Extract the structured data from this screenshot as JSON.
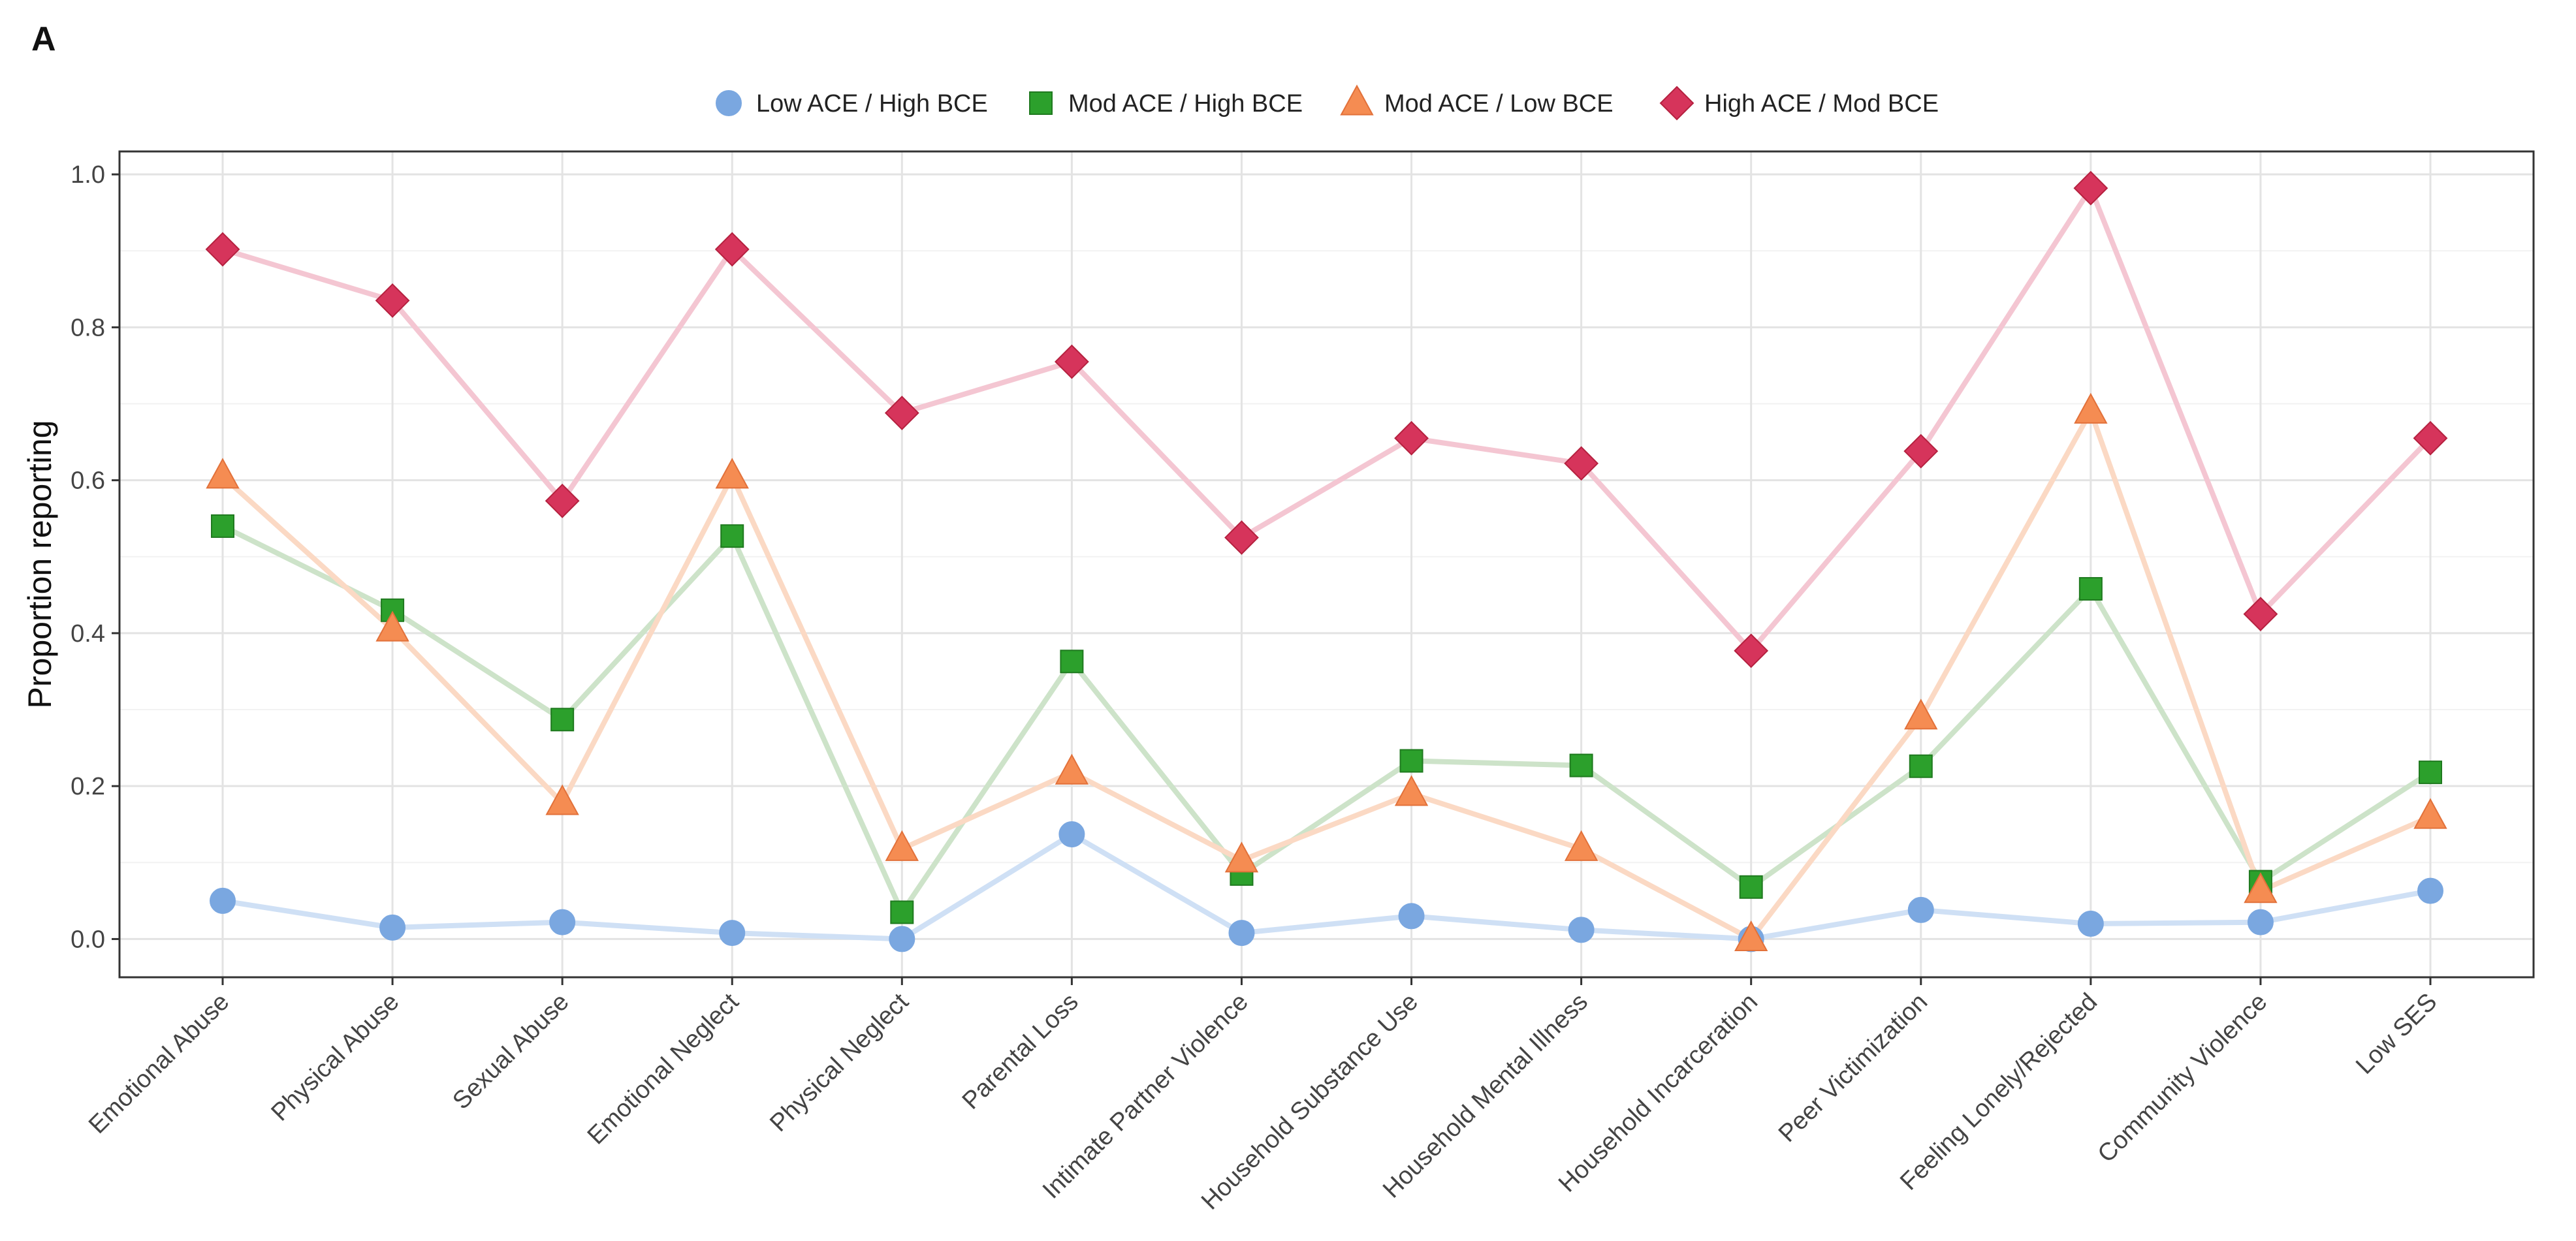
{
  "panel_label": "A",
  "chart_data": {
    "type": "line",
    "title": "",
    "xlabel": "",
    "ylabel": "Proportion reporting",
    "ylim": [
      -0.05,
      1.03
    ],
    "yticks": [
      0.0,
      0.2,
      0.4,
      0.6,
      0.8,
      1.0
    ],
    "ytick_labels": [
      "0.0",
      "0.2",
      "0.4",
      "0.6",
      "0.8",
      "1.0"
    ],
    "grid": true,
    "legend_position": "top",
    "categories": [
      "Emotional Abuse",
      "Physical Abuse",
      "Sexual Abuse",
      "Emotional Neglect",
      "Physical Neglect",
      "Parental Loss",
      "Intimate Partner Violence",
      "Household Substance Use",
      "Household Mental Illness",
      "Household Incarceration",
      "Peer Victimization",
      "Feeling Lonely/Rejected",
      "Community Violence",
      "Low SES"
    ],
    "series": [
      {
        "name": "Low ACE / High BCE",
        "marker": "circle",
        "color": "#7aa7e0",
        "line_color": "#cfe0f5",
        "values": [
          0.05,
          0.015,
          0.022,
          0.008,
          0.0,
          0.137,
          0.008,
          0.03,
          0.012,
          0.0,
          0.038,
          0.02,
          0.022,
          0.063
        ]
      },
      {
        "name": "Mod ACE / High BCE",
        "marker": "square",
        "color": "#2ca02c",
        "line_color": "#cde3c9",
        "values": [
          0.54,
          0.43,
          0.287,
          0.527,
          0.035,
          0.363,
          0.085,
          0.233,
          0.227,
          0.068,
          0.226,
          0.458,
          0.075,
          0.218
        ]
      },
      {
        "name": "Mod ACE / Low BCE",
        "marker": "triangle",
        "color": "#f58c52",
        "line_color": "#fbd9c4",
        "values": [
          0.605,
          0.405,
          0.178,
          0.605,
          0.118,
          0.218,
          0.103,
          0.19,
          0.118,
          0.0,
          0.29,
          0.69,
          0.063,
          0.16
        ]
      },
      {
        "name": "High ACE / Mod BCE",
        "marker": "diamond",
        "color": "#d6345b",
        "line_color": "#f4c6d2",
        "values": [
          0.902,
          0.835,
          0.573,
          0.902,
          0.688,
          0.755,
          0.525,
          0.655,
          0.622,
          0.377,
          0.638,
          0.982,
          0.425,
          0.655
        ]
      }
    ]
  }
}
